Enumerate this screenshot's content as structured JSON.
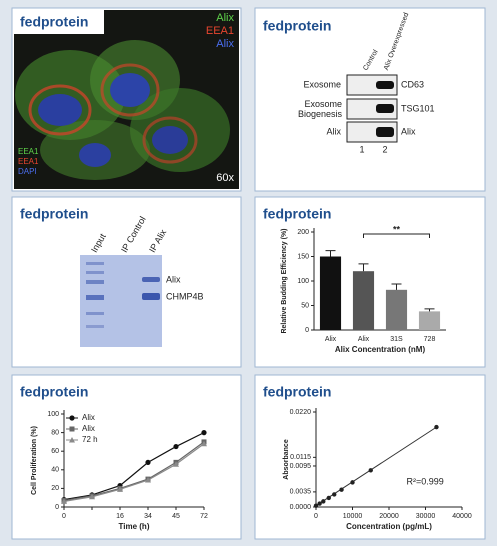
{
  "image_panel": {
    "header": "fedprotein",
    "top_labels": [
      "Alix",
      "EEA1",
      "Alix"
    ],
    "bottom_labels": [
      "EEA1",
      "EEA1",
      "DAPI"
    ],
    "magnification": "60x"
  },
  "blot_panel": {
    "header": "fedprotein",
    "lanes": [
      "Control",
      "Alix Overexpressed"
    ],
    "lane_numbers": [
      "1",
      "2"
    ],
    "row_labels": [
      "Exosome",
      "Exosome Biogenesis",
      "Alix"
    ],
    "markers": [
      "CD63",
      "TSG101",
      "Alix"
    ]
  },
  "gel_panel": {
    "header": "fedprotein",
    "lanes": [
      "Input",
      "IP Control",
      "IP Alix"
    ],
    "bands": [
      "Alix",
      "CHMP4B"
    ]
  },
  "chart_data": [
    {
      "type": "bar",
      "header": "fedprotein",
      "ylabel": "Relative Budding Efficiency (%)",
      "xlabel": "Alix Concentration (nM)",
      "categories": [
        "Alix",
        "Alix",
        "31S",
        "728"
      ],
      "values": [
        150,
        120,
        82,
        38
      ],
      "errors": [
        12,
        15,
        12,
        5
      ],
      "colors": [
        "#111111",
        "#555555",
        "#777777",
        "#aaaaaa"
      ],
      "annotation": "**",
      "ylim": [
        0,
        200
      ],
      "yticks": [
        0,
        50,
        100,
        150,
        200
      ]
    },
    {
      "type": "line",
      "header": "fedprotein",
      "ylabel": "Cell Proliferation (%)",
      "xlabel": "Time (h)",
      "categories": [
        "0",
        null,
        "16",
        "34",
        "45",
        "72"
      ],
      "series": [
        {
          "name": "Alix",
          "color": "#111111",
          "marker": "circle",
          "values": [
            8,
            13,
            23,
            48,
            65,
            80
          ]
        },
        {
          "name": "Alix",
          "color": "#666666",
          "marker": "square",
          "values": [
            7,
            12,
            20,
            30,
            48,
            70
          ]
        },
        {
          "name": "72 h",
          "color": "#8a8a8a",
          "marker": "triangle",
          "values": [
            6,
            11,
            19,
            29,
            46,
            68
          ]
        }
      ],
      "ylim": [
        0,
        100
      ],
      "yticks": [
        0,
        20,
        40,
        60,
        80,
        100
      ]
    },
    {
      "type": "scatter",
      "header": "fedprotein",
      "ylabel": "Absorbance",
      "xlabel": "Concentration (pg/mL)",
      "annotation": "R²=0.999",
      "x": [
        0,
        1000,
        2000,
        3500,
        5000,
        7000,
        10000,
        15000,
        33000
      ],
      "values": [
        0.0003,
        0.0008,
        0.0013,
        0.0021,
        0.0029,
        0.004,
        0.0057,
        0.0085,
        0.0185
      ],
      "color": "#222222",
      "xlim": [
        0,
        40000
      ],
      "xticks": [
        0,
        10000,
        20000,
        30000,
        40000
      ],
      "ylim": [
        0,
        0.022
      ],
      "yticks": [
        {
          "value": 0,
          "label": "0.0000"
        },
        {
          "value": 0.0035,
          "label": "0.0035"
        },
        {
          "value": 0.0095,
          "label": "0.0095"
        },
        {
          "value": 0.0115,
          "label": "0.0115"
        },
        {
          "value": 0.022,
          "label": "0.0220"
        }
      ]
    }
  ]
}
